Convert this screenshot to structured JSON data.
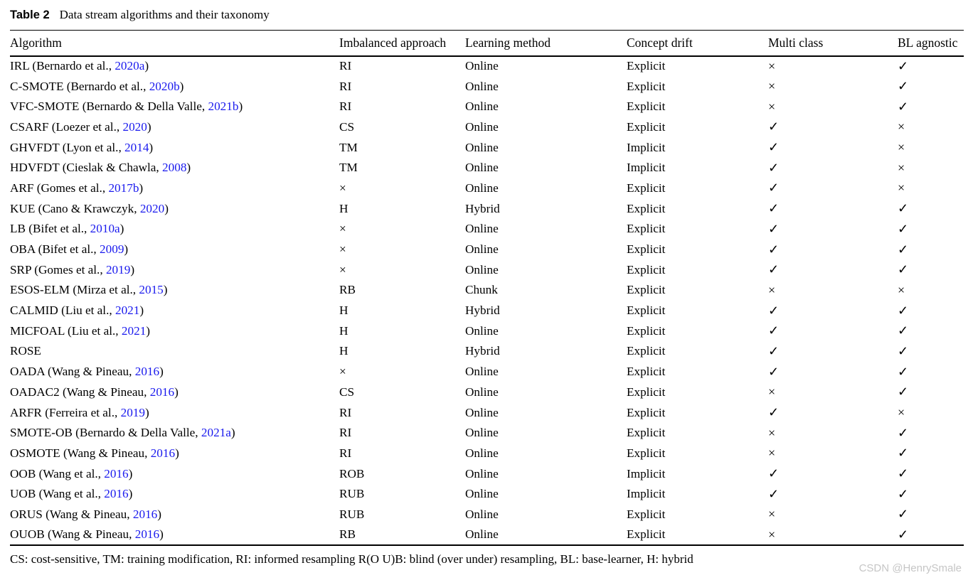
{
  "title": {
    "label": "Table 2",
    "caption": "Data stream algorithms and their taxonomy"
  },
  "columns": [
    "Algorithm",
    "Imbalanced approach",
    "Learning method",
    "Concept drift",
    "Multi class",
    "BL agnostic"
  ],
  "symbols": {
    "yes": "✓",
    "no": "×"
  },
  "colors": {
    "link_blue": "#1a1aee",
    "text": "#000000",
    "watermark_gray": "#c6c6c6"
  },
  "rows": [
    {
      "algorithm_pre": "IRL (Bernardo et al., ",
      "citation_year": "2020a",
      "algorithm_post": ")",
      "imbalanced": "RI",
      "learning": "Online",
      "drift": "Explicit",
      "multiclass": "×",
      "bl_agnostic": "✓"
    },
    {
      "algorithm_pre": "C-SMOTE (Bernardo et al., ",
      "citation_year": "2020b",
      "algorithm_post": ")",
      "imbalanced": "RI",
      "learning": "Online",
      "drift": "Explicit",
      "multiclass": "×",
      "bl_agnostic": "✓"
    },
    {
      "algorithm_pre": "VFC-SMOTE (Bernardo & Della Valle, ",
      "citation_year": "2021b",
      "algorithm_post": ")",
      "imbalanced": "RI",
      "learning": "Online",
      "drift": "Explicit",
      "multiclass": "×",
      "bl_agnostic": "✓"
    },
    {
      "algorithm_pre": "CSARF (Loezer et al., ",
      "citation_year": "2020",
      "algorithm_post": ")",
      "imbalanced": "CS",
      "learning": "Online",
      "drift": "Explicit",
      "multiclass": "✓",
      "bl_agnostic": "×"
    },
    {
      "algorithm_pre": "GHVFDT (Lyon et al., ",
      "citation_year": "2014",
      "algorithm_post": ")",
      "imbalanced": "TM",
      "learning": "Online",
      "drift": "Implicit",
      "multiclass": "✓",
      "bl_agnostic": "×"
    },
    {
      "algorithm_pre": "HDVFDT (Cieslak & Chawla, ",
      "citation_year": "2008",
      "algorithm_post": ")",
      "imbalanced": "TM",
      "learning": "Online",
      "drift": "Implicit",
      "multiclass": "✓",
      "bl_agnostic": "×"
    },
    {
      "algorithm_pre": "ARF (Gomes et al., ",
      "citation_year": "2017b",
      "algorithm_post": ")",
      "imbalanced": "×",
      "learning": "Online",
      "drift": "Explicit",
      "multiclass": "✓",
      "bl_agnostic": "×"
    },
    {
      "algorithm_pre": "KUE (Cano & Krawczyk, ",
      "citation_year": "2020",
      "algorithm_post": ")",
      "imbalanced": "H",
      "learning": "Hybrid",
      "drift": "Explicit",
      "multiclass": "✓",
      "bl_agnostic": "✓"
    },
    {
      "algorithm_pre": "LB (Bifet et al., ",
      "citation_year": "2010a",
      "algorithm_post": ")",
      "imbalanced": "×",
      "learning": "Online",
      "drift": "Explicit",
      "multiclass": "✓",
      "bl_agnostic": "✓"
    },
    {
      "algorithm_pre": "OBA (Bifet et al., ",
      "citation_year": "2009",
      "algorithm_post": ")",
      "imbalanced": "×",
      "learning": "Online",
      "drift": "Explicit",
      "multiclass": "✓",
      "bl_agnostic": "✓"
    },
    {
      "algorithm_pre": "SRP (Gomes et al., ",
      "citation_year": "2019",
      "algorithm_post": ")",
      "imbalanced": "×",
      "learning": "Online",
      "drift": "Explicit",
      "multiclass": "✓",
      "bl_agnostic": "✓"
    },
    {
      "algorithm_pre": "ESOS-ELM (Mirza et al., ",
      "citation_year": "2015",
      "algorithm_post": ")",
      "imbalanced": "RB",
      "learning": "Chunk",
      "drift": "Explicit",
      "multiclass": "×",
      "bl_agnostic": "×"
    },
    {
      "algorithm_pre": "CALMID (Liu et al., ",
      "citation_year": "2021",
      "algorithm_post": ")",
      "imbalanced": "H",
      "learning": "Hybrid",
      "drift": "Explicit",
      "multiclass": "✓",
      "bl_agnostic": "✓"
    },
    {
      "algorithm_pre": "MICFOAL (Liu et al., ",
      "citation_year": "2021",
      "algorithm_post": ")",
      "imbalanced": "H",
      "learning": "Online",
      "drift": "Explicit",
      "multiclass": "✓",
      "bl_agnostic": "✓"
    },
    {
      "algorithm_pre": "ROSE",
      "citation_year": "",
      "algorithm_post": "",
      "imbalanced": "H",
      "learning": "Hybrid",
      "drift": "Explicit",
      "multiclass": "✓",
      "bl_agnostic": "✓"
    },
    {
      "algorithm_pre": "OADA (Wang & Pineau, ",
      "citation_year": "2016",
      "algorithm_post": ")",
      "imbalanced": "×",
      "learning": "Online",
      "drift": "Explicit",
      "multiclass": "✓",
      "bl_agnostic": "✓"
    },
    {
      "algorithm_pre": "OADAC2 (Wang & Pineau, ",
      "citation_year": "2016",
      "algorithm_post": ")",
      "imbalanced": "CS",
      "learning": "Online",
      "drift": "Explicit",
      "multiclass": "×",
      "bl_agnostic": "✓"
    },
    {
      "algorithm_pre": "ARFR (Ferreira et al., ",
      "citation_year": "2019",
      "algorithm_post": ")",
      "imbalanced": "RI",
      "learning": "Online",
      "drift": "Explicit",
      "multiclass": "✓",
      "bl_agnostic": "×"
    },
    {
      "algorithm_pre": "SMOTE-OB (Bernardo & Della Valle, ",
      "citation_year": "2021a",
      "algorithm_post": ")",
      "imbalanced": "RI",
      "learning": "Online",
      "drift": "Explicit",
      "multiclass": "×",
      "bl_agnostic": "✓"
    },
    {
      "algorithm_pre": "OSMOTE (Wang & Pineau, ",
      "citation_year": "2016",
      "algorithm_post": ")",
      "imbalanced": "RI",
      "learning": "Online",
      "drift": "Explicit",
      "multiclass": "×",
      "bl_agnostic": "✓"
    },
    {
      "algorithm_pre": "OOB (Wang et al., ",
      "citation_year": "2016",
      "algorithm_post": ")",
      "imbalanced": "ROB",
      "learning": "Online",
      "drift": "Implicit",
      "multiclass": "✓",
      "bl_agnostic": "✓"
    },
    {
      "algorithm_pre": "UOB (Wang et al., ",
      "citation_year": "2016",
      "algorithm_post": ")",
      "imbalanced": "RUB",
      "learning": "Online",
      "drift": "Implicit",
      "multiclass": "✓",
      "bl_agnostic": "✓"
    },
    {
      "algorithm_pre": "ORUS (Wang & Pineau, ",
      "citation_year": "2016",
      "algorithm_post": ")",
      "imbalanced": "RUB",
      "learning": "Online",
      "drift": "Explicit",
      "multiclass": "×",
      "bl_agnostic": "✓"
    },
    {
      "algorithm_pre": "OUOB (Wang & Pineau, ",
      "citation_year": "2016",
      "algorithm_post": ")",
      "imbalanced": "RB",
      "learning": "Online",
      "drift": "Explicit",
      "multiclass": "×",
      "bl_agnostic": "✓"
    }
  ],
  "footnote": "CS: cost-sensitive, TM: training modification, RI: informed resampling R(O U)B: blind (over under) resampling, BL: base-learner, H: hybrid",
  "watermark": "CSDN @HenrySmale"
}
